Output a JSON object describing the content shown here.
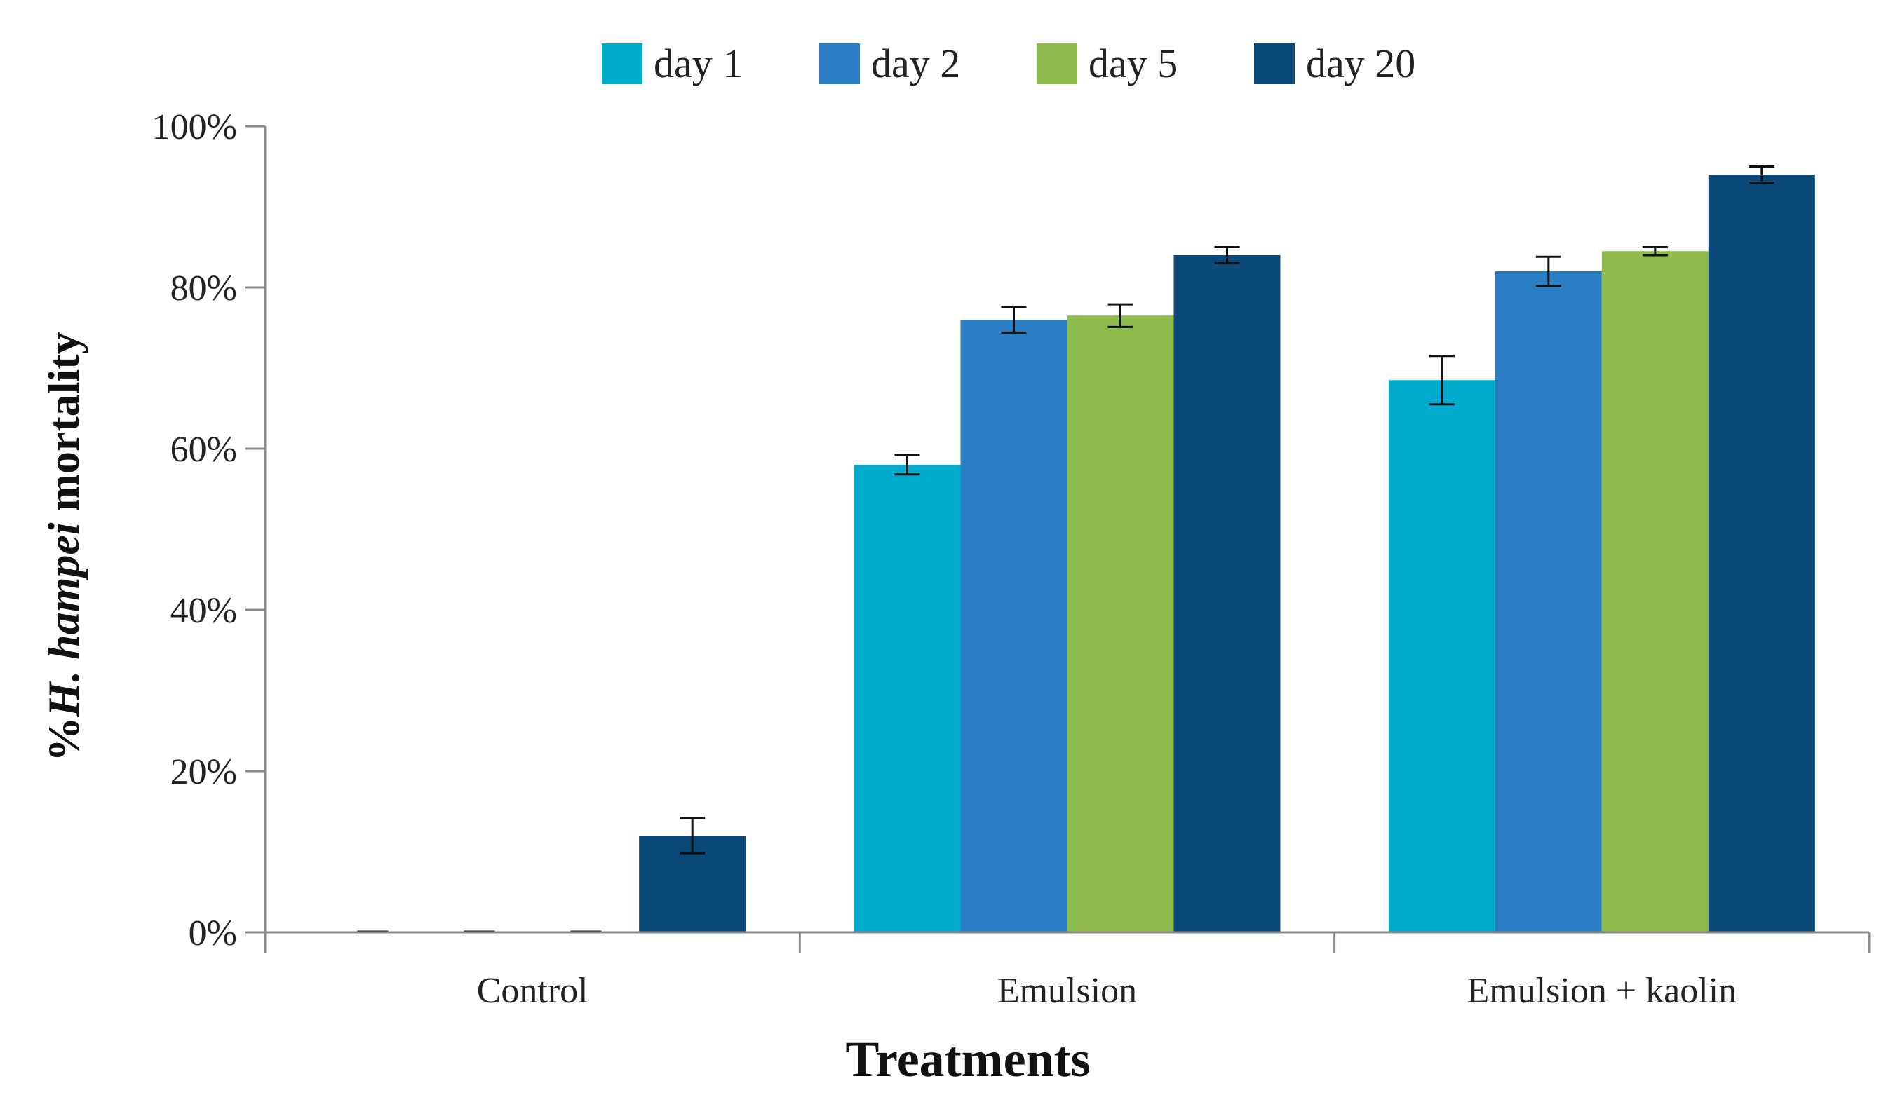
{
  "chart_data": {
    "type": "bar",
    "title": "",
    "xlabel": "Treatments",
    "ylabel_prefix": "%",
    "ylabel_italic": "H. hampei",
    "ylabel_suffix": " mortality",
    "ylim": [
      0,
      100
    ],
    "yticks": [
      0,
      20,
      40,
      60,
      80,
      100
    ],
    "ytick_suffix": "%",
    "legend_position": "top",
    "categories": [
      "Control",
      "Emulsion",
      "Emulsion + kaolin"
    ],
    "series": [
      {
        "name": "day 1",
        "color": "#00AACC",
        "values": [
          0,
          58,
          68.5
        ],
        "errors": [
          0,
          1.2,
          3
        ]
      },
      {
        "name": "day 2",
        "color": "#2A7FC4",
        "values": [
          0,
          76,
          82
        ],
        "errors": [
          0,
          1.6,
          1.8
        ]
      },
      {
        "name": "day 5",
        "color": "#8DBB4C",
        "values": [
          0,
          76.5,
          84.5
        ],
        "errors": [
          0,
          1.4,
          0.5
        ]
      },
      {
        "name": "day 20",
        "color": "#0B4A78",
        "values": [
          12,
          84,
          94
        ],
        "errors": [
          2.2,
          1,
          1
        ]
      }
    ]
  }
}
